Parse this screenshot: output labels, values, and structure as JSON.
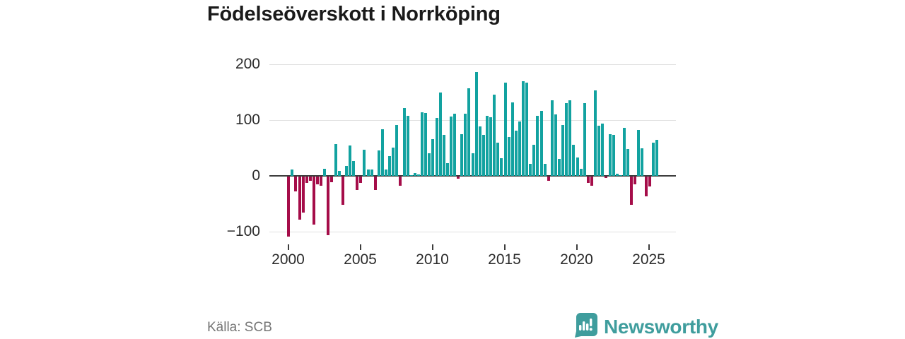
{
  "title": "Födelseöverskott i Norrköping",
  "footer": {
    "source": "Källa: SCB",
    "logo_text": "Newsworthy",
    "logo_icon": "newsworthy-speech-bubble-barchart-icon"
  },
  "colors": {
    "positive_bar": "#12a2a0",
    "negative_bar": "#a50d49",
    "grid": "#e0e0e0",
    "axis": "#3d3d3d",
    "label_text": "#2b2b2b",
    "muted_text": "#767676",
    "brand_teal": "#3f9d9d",
    "background": "#ffffff"
  },
  "chart_data": {
    "type": "bar",
    "title": "Födelseöverskott i Norrköping",
    "xlabel": "",
    "ylabel": "",
    "frequency": "quarterly",
    "start_period": "2000-Q1",
    "end_period": "2025-Q3",
    "y_ticks": [
      200,
      100,
      0,
      -100
    ],
    "y_tick_labels": [
      "200",
      "100",
      "0",
      "−100"
    ],
    "x_tick_years": [
      2000,
      2005,
      2010,
      2015,
      2020,
      2025
    ],
    "x_tick_labels": [
      "2000",
      "2005",
      "2010",
      "2015",
      "2020",
      "2025"
    ],
    "ylim": [
      -130,
      215
    ],
    "grid": "horizontal",
    "legend": "none",
    "series": [
      {
        "name": "Födelseöverskott",
        "values": [
          -107,
          12,
          -27,
          -77,
          -65,
          -12,
          -8,
          -86,
          -14,
          -16,
          13,
          -105,
          -10,
          57,
          9,
          -50,
          18,
          54,
          26,
          -24,
          -12,
          47,
          12,
          11,
          -24,
          45,
          83,
          11,
          35,
          51,
          91,
          -16,
          121,
          108,
          1,
          5,
          3,
          114,
          113,
          40,
          66,
          104,
          150,
          74,
          23,
          106,
          111,
          -4,
          75,
          111,
          157,
          41,
          186,
          88,
          73,
          107,
          105,
          146,
          59,
          32,
          167,
          69,
          132,
          81,
          97,
          169,
          167,
          21,
          56,
          108,
          117,
          22,
          -8,
          136,
          110,
          31,
          91,
          130,
          135,
          56,
          33,
          13,
          130,
          -12,
          -16,
          153,
          90,
          94,
          -3,
          75,
          73,
          4,
          1,
          86,
          48,
          -50,
          -14,
          82,
          50,
          -36,
          -18,
          59,
          65
        ]
      }
    ]
  }
}
